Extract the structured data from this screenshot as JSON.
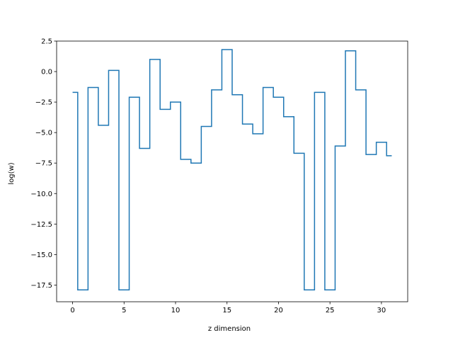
{
  "chart_data": {
    "type": "line",
    "drawstyle": "steps-mid",
    "title": "",
    "xlabel": "z dimension",
    "ylabel": "log(w)",
    "xlim": [
      -1.55,
      32.55
    ],
    "ylim": [
      -18.87,
      2.5
    ],
    "grid": false,
    "legend": "none",
    "x_ticks": [
      0,
      5,
      10,
      15,
      20,
      25,
      30
    ],
    "y_ticks": [
      2.5,
      0.0,
      -2.5,
      -5.0,
      -7.5,
      -10.0,
      -12.5,
      -15.0,
      -17.5
    ],
    "line_color": "#1f77b4",
    "series": [
      {
        "x": [
          0,
          1,
          2,
          3,
          4,
          5,
          6,
          7,
          8,
          9,
          10,
          11,
          12,
          13,
          14,
          15,
          16,
          17,
          18,
          19,
          20,
          21,
          22,
          23,
          24,
          25,
          26,
          27,
          28,
          29,
          30,
          31
        ],
        "values": [
          -1.7,
          -17.9,
          -1.3,
          -4.4,
          0.1,
          -17.9,
          -2.1,
          -6.3,
          1.0,
          -3.1,
          -2.5,
          -7.2,
          -7.5,
          -4.5,
          -1.5,
          1.8,
          -1.9,
          -4.3,
          -5.1,
          -1.3,
          -2.1,
          -3.7,
          -6.7,
          -17.9,
          -1.7,
          -17.9,
          -6.1,
          1.7,
          -1.5,
          -6.8,
          -5.8,
          -6.9
        ]
      }
    ]
  }
}
